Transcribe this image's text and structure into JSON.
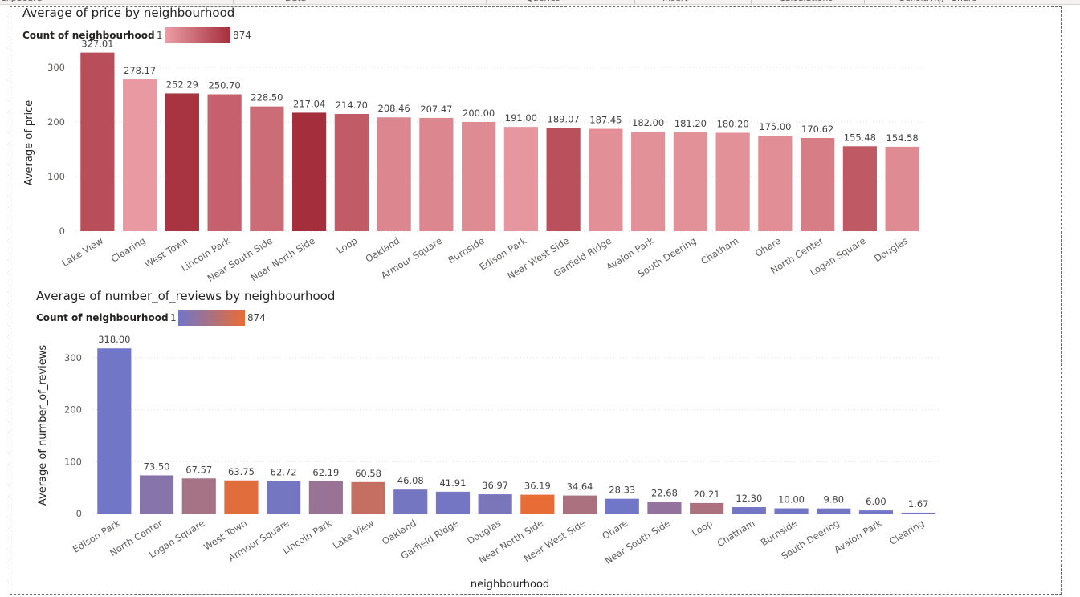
{
  "ribbon": {
    "groups": [
      "Clipboard",
      "Data",
      "Queries",
      "Insert",
      "Calculations",
      "Sensitivity",
      "Share"
    ]
  },
  "colors": {
    "chart1_low": "#ec9fa6",
    "chart1_high": "#a42e3c",
    "chart2_low": "#6f76c9",
    "chart2_high": "#e86c35",
    "gridline": "#d9d9d9"
  },
  "chart_data": [
    {
      "type": "bar",
      "title": "Average of price by neighbourhood",
      "xlabel": "",
      "ylabel": "Average of price",
      "ylim": [
        0,
        350
      ],
      "yticks": [
        0,
        100,
        200,
        300
      ],
      "grid": true,
      "legend": {
        "label": "Count of neighbourhood",
        "min_label": "1",
        "max_label": "874",
        "placement": "top-left"
      },
      "categories": [
        "Lake View",
        "Clearing",
        "West Town",
        "Lincoln Park",
        "Near South Side",
        "Near North Side",
        "Loop",
        "Oakland",
        "Armour Square",
        "Burnside",
        "Edison Park",
        "Near West Side",
        "Garfield Ridge",
        "Avalon Park",
        "South Deering",
        "Chatham",
        "Ohare",
        "North Center",
        "Logan Square",
        "Douglas"
      ],
      "values": [
        327.01,
        278.17,
        252.29,
        250.7,
        228.5,
        217.04,
        214.7,
        208.46,
        207.47,
        200.0,
        191.0,
        189.07,
        187.45,
        182.0,
        181.2,
        180.2,
        175.0,
        170.62,
        155.48,
        154.58
      ],
      "value_labels": [
        "327.01",
        "278.17",
        "252.29",
        "250.70",
        "228.50",
        "217.04",
        "214.70",
        "208.46",
        "207.47",
        "200.00",
        "191.00",
        "189.07",
        "187.45",
        "182.00",
        "181.20",
        "180.20",
        "175.00",
        "170.62",
        "155.48",
        "154.58"
      ],
      "color_intensity": [
        0.72,
        0.05,
        0.95,
        0.55,
        0.45,
        1.0,
        0.6,
        0.22,
        0.22,
        0.18,
        0.08,
        0.7,
        0.14,
        0.12,
        0.12,
        0.12,
        0.15,
        0.3,
        0.62,
        0.18
      ]
    },
    {
      "type": "bar",
      "title": "Average of number_of_reviews by neighbourhood",
      "xlabel": "neighbourhood",
      "ylabel": "Average of number_of_reviews",
      "ylim": [
        0,
        340
      ],
      "yticks": [
        0,
        100,
        200,
        300
      ],
      "grid": true,
      "legend": {
        "label": "Count of neighbourhood",
        "min_label": "1",
        "max_label": "874",
        "placement": "top-left"
      },
      "categories": [
        "Edison Park",
        "North Center",
        "Logan Square",
        "West Town",
        "Armour Square",
        "Lincoln Park",
        "Lake View",
        "Oakland",
        "Garfield Ridge",
        "Douglas",
        "Near North Side",
        "Near West Side",
        "Ohare",
        "Near South Side",
        "Loop",
        "Chatham",
        "Burnside",
        "South Deering",
        "Avalon Park",
        "Clearing"
      ],
      "values": [
        318.0,
        73.5,
        67.57,
        63.75,
        62.72,
        62.19,
        60.58,
        46.08,
        41.91,
        36.97,
        36.19,
        34.64,
        28.33,
        22.68,
        20.21,
        12.3,
        10.0,
        9.8,
        6.0,
        1.67
      ],
      "value_labels": [
        "318.00",
        "73.50",
        "67.57",
        "63.75",
        "62.72",
        "62.19",
        "60.58",
        "46.08",
        "41.91",
        "36.97",
        "36.19",
        "34.64",
        "28.33",
        "22.68",
        "20.21",
        "12.30",
        "10.00",
        "9.80",
        "6.00",
        "1.67"
      ],
      "color_intensity": [
        0.02,
        0.2,
        0.45,
        0.95,
        0.05,
        0.35,
        0.7,
        0.05,
        0.04,
        0.1,
        1.0,
        0.5,
        0.02,
        0.3,
        0.5,
        0.04,
        0.03,
        0.04,
        0.03,
        0.02
      ]
    }
  ]
}
